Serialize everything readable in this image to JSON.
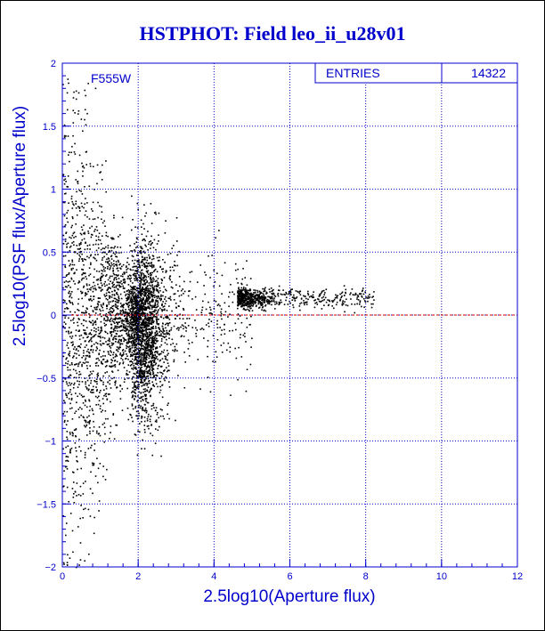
{
  "chart_data": {
    "type": "scatter",
    "title": "HSTPHOT: Field leo_ii_u28v01",
    "xlabel": "2.5log10(Aperture flux)",
    "ylabel": "2.5log10(PSF flux/Aperture flux)",
    "xlim": [
      0,
      12
    ],
    "ylim": [
      -2,
      2
    ],
    "x_ticks": [
      0,
      2,
      4,
      6,
      8,
      10,
      12
    ],
    "y_ticks": [
      -2,
      -1.5,
      -1,
      -0.5,
      0,
      0.5,
      1,
      1.5,
      2
    ],
    "x_tick_labels": [
      "0",
      "2",
      "4",
      "6",
      "8",
      "10",
      "12"
    ],
    "y_tick_labels": [
      "−2",
      "−1.5",
      "−1",
      "−0.5",
      "0",
      "0.5",
      "1",
      "1.5",
      "2"
    ],
    "grid": true,
    "reference_line": {
      "y": 0,
      "color": "#cc0000",
      "style": "dashed"
    },
    "filter_label": "F555W",
    "stats": {
      "label": "ENTRIES",
      "value": "14322"
    },
    "entries": 14322,
    "marker_color": "#000000",
    "accent_color": "#0000cc",
    "grid_color": "#0000cc"
  }
}
